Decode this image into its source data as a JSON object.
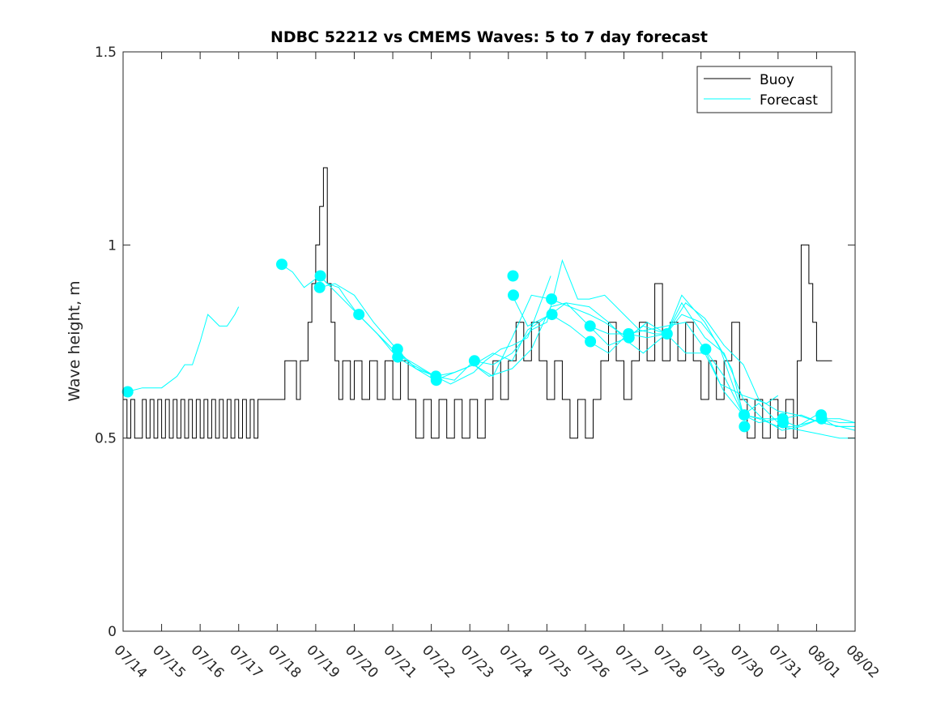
{
  "chart_data": {
    "type": "line",
    "title": "NDBC 52212 vs CMEMS Waves: 5 to 7 day forecast",
    "xlabel": "",
    "ylabel": "Wave height, m",
    "x_axis": {
      "unit": "days since 07/14 00:00",
      "xlim": [
        0,
        19
      ]
    },
    "ylim": [
      0,
      1.5
    ],
    "yticks": [
      0,
      0.5,
      1,
      1.5
    ],
    "ytick_labels": [
      "0",
      "0.5",
      "1",
      "1.5"
    ],
    "xtick_labels": [
      "07/14",
      "07/15",
      "07/16",
      "07/17",
      "07/18",
      "07/19",
      "07/20",
      "07/21",
      "07/22",
      "07/23",
      "07/24",
      "07/25",
      "07/26",
      "07/27",
      "07/28",
      "07/29",
      "07/30",
      "07/31",
      "08/01",
      "08/02"
    ],
    "grid": false,
    "legend": {
      "placement": "top-right",
      "entries": [
        "Buoy",
        "Forecast"
      ]
    },
    "colors": {
      "buoy": "#000000",
      "forecast": "#00FFFF",
      "axes": "#262626"
    },
    "series": [
      {
        "name": "Buoy",
        "style": "step",
        "x": [
          0.0,
          0.1,
          0.2,
          0.3,
          0.5,
          0.6,
          0.7,
          0.8,
          0.9,
          1.0,
          1.1,
          1.2,
          1.3,
          1.4,
          1.5,
          1.6,
          1.7,
          1.8,
          1.9,
          2.0,
          2.1,
          2.2,
          2.3,
          2.4,
          2.5,
          2.6,
          2.7,
          2.8,
          2.9,
          3.0,
          3.1,
          3.2,
          3.3,
          3.4,
          3.5,
          3.6,
          3.7,
          4.0,
          4.2,
          4.5,
          4.6,
          4.8,
          4.9,
          5.0,
          5.1,
          5.2,
          5.3,
          5.4,
          5.5,
          5.6,
          5.7,
          5.9,
          6.0,
          6.2,
          6.4,
          6.6,
          6.8,
          7.0,
          7.2,
          7.4,
          7.6,
          7.8,
          8.0,
          8.2,
          8.4,
          8.6,
          8.8,
          9.0,
          9.2,
          9.4,
          9.6,
          9.8,
          10.0,
          10.2,
          10.4,
          10.6,
          10.8,
          11.0,
          11.2,
          11.4,
          11.6,
          11.8,
          12.0,
          12.2,
          12.4,
          12.6,
          12.8,
          13.0,
          13.2,
          13.4,
          13.6,
          13.8,
          14.0,
          14.2,
          14.4,
          14.6,
          14.8,
          15.0,
          15.2,
          15.4,
          15.6,
          15.8,
          16.0,
          16.2,
          16.4,
          16.6,
          16.8,
          17.0,
          17.2,
          17.4,
          17.5,
          17.6,
          17.8,
          17.9,
          18.0,
          18.2,
          18.4
        ],
        "y": [
          0.6,
          0.5,
          0.6,
          0.5,
          0.6,
          0.5,
          0.6,
          0.5,
          0.6,
          0.5,
          0.6,
          0.5,
          0.6,
          0.5,
          0.6,
          0.5,
          0.6,
          0.5,
          0.6,
          0.5,
          0.6,
          0.5,
          0.6,
          0.5,
          0.6,
          0.5,
          0.6,
          0.5,
          0.6,
          0.5,
          0.6,
          0.5,
          0.6,
          0.5,
          0.6,
          0.6,
          0.6,
          0.6,
          0.7,
          0.6,
          0.7,
          0.8,
          0.9,
          1.0,
          1.1,
          1.2,
          0.9,
          0.8,
          0.7,
          0.6,
          0.7,
          0.6,
          0.7,
          0.6,
          0.7,
          0.6,
          0.7,
          0.6,
          0.7,
          0.6,
          0.5,
          0.6,
          0.5,
          0.6,
          0.5,
          0.6,
          0.5,
          0.6,
          0.5,
          0.6,
          0.7,
          0.6,
          0.7,
          0.8,
          0.7,
          0.8,
          0.7,
          0.6,
          0.7,
          0.6,
          0.5,
          0.6,
          0.5,
          0.6,
          0.7,
          0.8,
          0.7,
          0.6,
          0.7,
          0.8,
          0.7,
          0.9,
          0.7,
          0.8,
          0.7,
          0.8,
          0.7,
          0.6,
          0.7,
          0.6,
          0.7,
          0.8,
          0.6,
          0.5,
          0.6,
          0.5,
          0.6,
          0.5,
          0.6,
          0.5,
          0.7,
          1.0,
          0.9,
          0.8,
          0.7,
          0.7,
          0.7
        ]
      },
      {
        "name": "Forecast",
        "style": "multi-line",
        "segments": [
          {
            "x": [
              0.1,
              0.5,
              1.0,
              1.4,
              1.6,
              1.8,
              2.0,
              2.2,
              2.5,
              2.7,
              2.9,
              3.0
            ],
            "y": [
              0.62,
              0.63,
              0.63,
              0.66,
              0.69,
              0.69,
              0.75,
              0.82,
              0.79,
              0.79,
              0.82,
              0.84
            ]
          },
          {
            "x": [
              4.1,
              4.4,
              4.7,
              5.1,
              5.3,
              5.6,
              5.8,
              6.1,
              6.5,
              7.1,
              7.5,
              8.1,
              8.5,
              9.1,
              9.4,
              9.8,
              10.1,
              10.5,
              11.1
            ],
            "y": [
              0.95,
              0.93,
              0.89,
              0.92,
              0.9,
              0.89,
              0.86,
              0.82,
              0.78,
              0.72,
              0.69,
              0.66,
              0.64,
              0.67,
              0.7,
              0.73,
              0.74,
              0.76,
              0.92
            ]
          },
          {
            "x": [
              5.1,
              5.5,
              6.0,
              6.5,
              7.1,
              7.6,
              8.1,
              8.6,
              9.1,
              9.6,
              10.1,
              10.6,
              11.0,
              11.4,
              11.8,
              12.1,
              12.5,
              13.0,
              13.4,
              13.8,
              14.1,
              14.5,
              15.0,
              15.4,
              15.8,
              16.1,
              16.5,
              17.0,
              17.4,
              17.8,
              18.1,
              18.6,
              19.0
            ],
            "y": [
              0.89,
              0.9,
              0.87,
              0.8,
              0.73,
              0.68,
              0.66,
              0.65,
              0.7,
              0.69,
              0.72,
              0.78,
              0.8,
              0.96,
              0.86,
              0.86,
              0.87,
              0.82,
              0.78,
              0.77,
              0.77,
              0.82,
              0.8,
              0.75,
              0.68,
              0.56,
              0.55,
              0.53,
              0.53,
              0.54,
              0.55,
              0.54,
              0.54
            ]
          },
          {
            "x": [
              5.1,
              5.5,
              6.1,
              6.6,
              7.1,
              7.6,
              8.1,
              8.6,
              9.1,
              9.6,
              10.1,
              10.5,
              11.1,
              11.5,
              12.1,
              12.6,
              13.1,
              13.5,
              14.1,
              14.6,
              15.1,
              15.6,
              16.1,
              16.5,
              17.0,
              17.5,
              18.1,
              18.6,
              19.0
            ],
            "y": [
              0.92,
              0.88,
              0.82,
              0.77,
              0.71,
              0.68,
              0.65,
              0.67,
              0.69,
              0.72,
              0.7,
              0.78,
              0.82,
              0.85,
              0.84,
              0.8,
              0.75,
              0.72,
              0.77,
              0.85,
              0.81,
              0.74,
              0.69,
              0.6,
              0.57,
              0.56,
              0.54,
              0.53,
              0.52
            ]
          },
          {
            "x": [
              6.1,
              6.6,
              7.1,
              7.6,
              8.1,
              8.6,
              9.1,
              9.6,
              10.1,
              10.6,
              11.1,
              11.6,
              12.1,
              12.5,
              13.1,
              13.5,
              14.1,
              14.5,
              15.1,
              15.5,
              16.1,
              16.5,
              17.1,
              17.6,
              18.1,
              18.6,
              19.0
            ],
            "y": [
              0.82,
              0.77,
              0.72,
              0.69,
              0.66,
              0.67,
              0.69,
              0.66,
              0.76,
              0.87,
              0.86,
              0.84,
              0.82,
              0.8,
              0.76,
              0.79,
              0.77,
              0.87,
              0.8,
              0.73,
              0.56,
              0.59,
              0.53,
              0.52,
              0.51,
              0.5,
              0.5
            ]
          },
          {
            "x": [
              9.1,
              9.5,
              10.1,
              10.6,
              11.1,
              11.5,
              12.1,
              12.6,
              13.1,
              13.6,
              14.1,
              14.5,
              15.1,
              15.6,
              16.1,
              16.6,
              17.1,
              17.6,
              18.1,
              18.6,
              19.0
            ],
            "y": [
              0.69,
              0.66,
              0.68,
              0.73,
              0.84,
              0.85,
              0.79,
              0.74,
              0.76,
              0.8,
              0.77,
              0.85,
              0.76,
              0.72,
              0.6,
              0.55,
              0.52,
              0.53,
              0.55,
              0.55,
              0.54
            ]
          },
          {
            "x": [
              10.1,
              10.5,
              11.1,
              11.6,
              12.1,
              12.6,
              13.1,
              13.6,
              14.1,
              14.6,
              15.1,
              15.6,
              16.1,
              16.6,
              17.1,
              17.6,
              18.1,
              18.6,
              19.0
            ],
            "y": [
              0.87,
              0.79,
              0.82,
              0.79,
              0.75,
              0.72,
              0.77,
              0.78,
              0.79,
              0.8,
              0.73,
              0.66,
              0.56,
              0.55,
              0.55,
              0.56,
              0.54,
              0.53,
              0.53
            ]
          },
          {
            "x": [
              12.1,
              12.6,
              13.1,
              13.6,
              14.1,
              14.6,
              15.1,
              15.6,
              16.1,
              16.5,
              17.0,
              17.5,
              18.0,
              18.5,
              19.0
            ],
            "y": [
              0.79,
              0.77,
              0.77,
              0.76,
              0.77,
              0.72,
              0.72,
              0.62,
              0.56,
              0.54,
              0.55,
              0.53,
              0.56,
              0.53,
              0.53
            ]
          },
          {
            "x": [
              15.1,
              15.5,
              16.1,
              16.4,
              16.7,
              17.0
            ],
            "y": [
              0.73,
              0.64,
              0.61,
              0.6,
              0.59,
              0.61
            ]
          }
        ]
      },
      {
        "name": "Forecast start points",
        "style": "markers",
        "x": [
          0.12,
          4.12,
          5.1,
          5.12,
          6.12,
          7.12,
          7.13,
          8.12,
          8.13,
          9.12,
          10.12,
          10.13,
          11.12,
          11.13,
          12.12,
          12.13,
          13.12,
          13.13,
          14.12,
          15.12,
          16.12,
          16.13,
          17.12,
          17.13,
          18.12,
          18.13
        ],
        "y": [
          0.62,
          0.95,
          0.89,
          0.92,
          0.82,
          0.73,
          0.71,
          0.66,
          0.65,
          0.7,
          0.92,
          0.87,
          0.86,
          0.82,
          0.79,
          0.75,
          0.77,
          0.76,
          0.77,
          0.73,
          0.56,
          0.53,
          0.55,
          0.54,
          0.56,
          0.55
        ]
      }
    ]
  }
}
